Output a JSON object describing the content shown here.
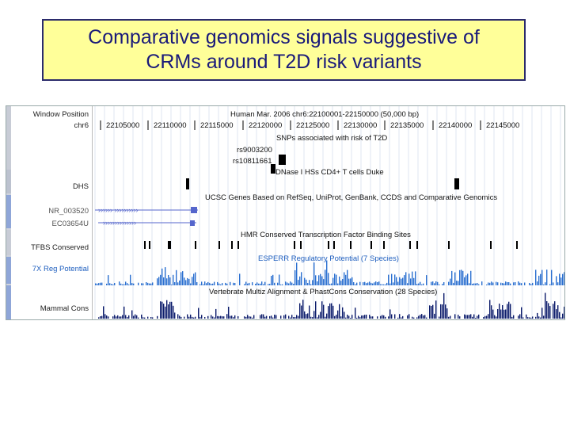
{
  "title": {
    "line1": "Comparative genomics signals suggestive of",
    "line2": "CRMs around T2D risk variants"
  },
  "browser": {
    "labels": {
      "window_position": "Window Position",
      "chr": "chr6",
      "dhs": "DHS",
      "gene1": "NR_003520",
      "gene2": "EC03654U",
      "tfbs": "TFBS Conserved",
      "regpot": "7X Reg Potential",
      "mammal": "Mammal Cons"
    },
    "header_text": "Human Mar. 2006   chr6:22100001-22150000 (50,000 bp)",
    "coordinates": [
      "22105000",
      "22110000",
      "22115000",
      "22120000",
      "22125000",
      "22130000",
      "22135000",
      "22140000",
      "22145000"
    ],
    "snp_track_title": "SNPs associated with risk of T2D",
    "snp1": "rs9003200",
    "snp2": "rs10811661",
    "dnase_title": "DNase I HSs CD4+ T cells Duke",
    "genes_title": "UCSC Genes Based on RefSeq, UniProt, GenBank, CCDS and Comparative Genomics",
    "tfbs_title": "HMR Conserved Transcription Factor Binding Sites",
    "esperr_title": "ESPERR Regulatory Potential (7 Species)",
    "cons_title": "Vertebrate Multiz Alignment & PhastCons Conservation (28 Species)",
    "colors": {
      "title_bg": "#ffff99",
      "title_text": "#1a1a7a",
      "regpot": "#2a6fd0",
      "cons": "#0a1a6a",
      "gene": "#5566cc"
    }
  }
}
